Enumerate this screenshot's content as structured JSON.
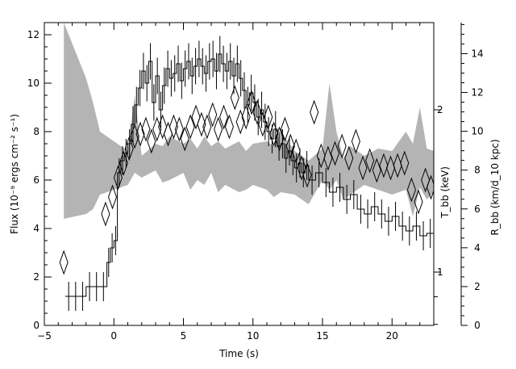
{
  "chart_data": {
    "type": "line",
    "title": "",
    "xlabel": "Time (s)",
    "ylabel_left": "Flux (10⁻⁹ ergs cm⁻² s⁻¹)",
    "ylabel_right_1": "T_bb (keV)",
    "ylabel_right_2": "R_bb (km/d_10 kpc)",
    "xlim": [
      -5,
      23
    ],
    "ylim_left": [
      0,
      12.5
    ],
    "ylim_right_R": [
      0,
      15.6
    ],
    "x_ticks": [
      -5,
      0,
      5,
      10,
      15,
      20
    ],
    "x_tick_labels": [
      "−5",
      "0",
      "5",
      "10",
      "15",
      "20"
    ],
    "y_ticks_left": [
      0,
      2,
      4,
      6,
      8,
      10,
      12
    ],
    "y_tick_labels_left": [
      "0",
      "2",
      "4",
      "6",
      "8",
      "10",
      "12"
    ],
    "T_axis": {
      "scale": "log",
      "label_values": [
        1,
        2
      ],
      "label_texts": [
        "1",
        "2"
      ],
      "y_positions_in_left_units": [
        2.2,
        8.9
      ]
    },
    "R_axis": {
      "ticks": [
        0,
        2,
        4,
        6,
        8,
        10,
        12,
        14
      ],
      "tick_labels": [
        "0",
        "2",
        "4",
        "6",
        "8",
        "10",
        "12",
        "14"
      ]
    },
    "grid": false,
    "legend": "none",
    "series": [
      {
        "style": "histogram",
        "color": "#000000",
        "x": [
          -3.5,
          -3.0,
          -2.5,
          -2.0,
          -1.5,
          -1.0,
          -0.5,
          -0.25,
          0.0,
          0.25,
          0.5,
          0.75,
          1.0,
          1.25,
          1.5,
          1.75,
          2.0,
          2.25,
          2.5,
          2.75,
          3.0,
          3.25,
          3.5,
          3.75,
          4.0,
          4.25,
          4.5,
          4.75,
          5.0,
          5.25,
          5.5,
          5.75,
          6.0,
          6.25,
          6.5,
          6.75,
          7.0,
          7.25,
          7.5,
          7.75,
          8.0,
          8.25,
          8.5,
          8.75,
          9.0,
          9.25,
          9.5,
          9.75,
          10.0,
          10.25,
          10.5,
          10.75,
          11.0,
          11.25,
          11.5,
          11.75,
          12.0,
          12.25,
          12.5,
          12.75,
          13.0,
          13.25,
          13.5,
          13.75,
          14.0,
          14.5,
          15.0,
          15.5,
          16.0,
          16.5,
          17.0,
          17.5,
          18.0,
          18.5,
          19.0,
          19.5,
          20.0,
          20.5,
          21.0,
          21.5,
          22.0,
          22.5
        ],
        "y": [
          1.2,
          1.2,
          1.2,
          1.6,
          1.6,
          1.6,
          2.6,
          3.2,
          3.5,
          6.3,
          6.8,
          7.1,
          7.5,
          8.3,
          9.1,
          9.8,
          10.5,
          10.0,
          10.9,
          9.2,
          10.3,
          8.9,
          9.9,
          10.6,
          10.2,
          10.4,
          10.8,
          10.1,
          10.6,
          10.9,
          10.3,
          10.7,
          11.0,
          10.7,
          10.4,
          10.9,
          11.0,
          10.5,
          11.2,
          10.8,
          10.5,
          10.9,
          10.3,
          10.8,
          10.2,
          9.7,
          9.1,
          9.6,
          9.2,
          8.6,
          8.9,
          8.4,
          8.0,
          7.7,
          8.1,
          7.4,
          7.5,
          6.9,
          7.2,
          6.8,
          6.5,
          6.7,
          6.3,
          6.6,
          6.0,
          6.3,
          5.9,
          5.5,
          5.7,
          5.2,
          5.4,
          4.8,
          4.6,
          4.9,
          4.6,
          4.3,
          4.5,
          4.1,
          3.9,
          4.1,
          3.7,
          3.8
        ],
        "x_end": 23.0
      },
      {
        "style": "diamond",
        "color": "#000000",
        "x": [
          -3.6,
          -0.6,
          -0.1,
          0.3,
          0.7,
          1.1,
          1.5,
          1.9,
          2.3,
          2.7,
          3.1,
          3.5,
          3.9,
          4.3,
          4.7,
          5.1,
          5.5,
          5.9,
          6.3,
          6.7,
          7.1,
          7.5,
          7.9,
          8.3,
          8.7,
          9.1,
          9.5,
          9.9,
          10.3,
          10.7,
          11.1,
          11.5,
          11.9,
          12.3,
          12.7,
          13.1,
          13.5,
          13.9,
          14.4,
          14.9,
          15.4,
          15.9,
          16.4,
          16.9,
          17.4,
          17.9,
          18.4,
          18.9,
          19.4,
          19.9,
          20.4,
          20.9,
          21.4,
          21.9,
          22.4,
          22.8
        ],
        "y": [
          2.6,
          4.6,
          5.3,
          6.1,
          6.7,
          7.3,
          7.8,
          7.9,
          8.1,
          7.6,
          8.1,
          8.2,
          7.9,
          8.2,
          8.1,
          7.7,
          8.2,
          8.6,
          8.3,
          8.2,
          8.7,
          8.1,
          8.6,
          8.2,
          9.4,
          8.4,
          8.6,
          9.2,
          8.8,
          8.3,
          8.6,
          7.9,
          7.7,
          8.1,
          7.4,
          7.2,
          6.5,
          6.2,
          8.8,
          7.0,
          6.9,
          7.1,
          7.4,
          6.9,
          7.6,
          6.5,
          6.8,
          6.4,
          6.6,
          6.5,
          6.6,
          6.7,
          5.6,
          5.1,
          6.0,
          5.7
        ]
      },
      {
        "style": "band",
        "color": "#b4b4b4",
        "x": [
          -3.6,
          -2.0,
          -1.5,
          -1.0,
          0.0,
          1.0,
          1.5,
          2.0,
          3.0,
          3.5,
          4.0,
          5.0,
          5.5,
          6.0,
          6.5,
          7.0,
          7.5,
          8.0,
          9.0,
          9.5,
          10.0,
          11.0,
          11.5,
          12.0,
          13.0,
          14.0,
          15.0,
          15.5,
          16.0,
          16.5,
          17.0,
          18.0,
          19.0,
          20.0,
          21.0,
          21.5,
          22.0,
          22.5,
          23.0
        ],
        "upper": [
          12.5,
          10.2,
          9.2,
          8.0,
          7.6,
          7.2,
          9.5,
          7.0,
          7.5,
          7.4,
          7.8,
          7.5,
          7.7,
          7.3,
          7.8,
          7.4,
          7.6,
          7.3,
          7.6,
          7.2,
          7.5,
          7.6,
          7.4,
          8.0,
          7.2,
          6.8,
          7.3,
          10.0,
          8.0,
          6.9,
          7.4,
          7.0,
          7.3,
          7.2,
          8.0,
          7.5,
          9.0,
          7.3,
          7.2
        ],
        "lower": [
          4.4,
          4.6,
          4.8,
          5.4,
          5.6,
          5.8,
          6.3,
          6.1,
          6.4,
          5.9,
          6.0,
          6.3,
          5.6,
          6.0,
          5.8,
          6.3,
          5.5,
          5.8,
          5.5,
          5.6,
          5.8,
          5.6,
          5.3,
          5.5,
          5.4,
          5.0,
          6.0,
          5.6,
          6.0,
          5.2,
          5.4,
          5.8,
          5.6,
          5.4,
          5.6,
          4.5,
          5.7,
          5.2,
          5.5
        ]
      }
    ]
  }
}
